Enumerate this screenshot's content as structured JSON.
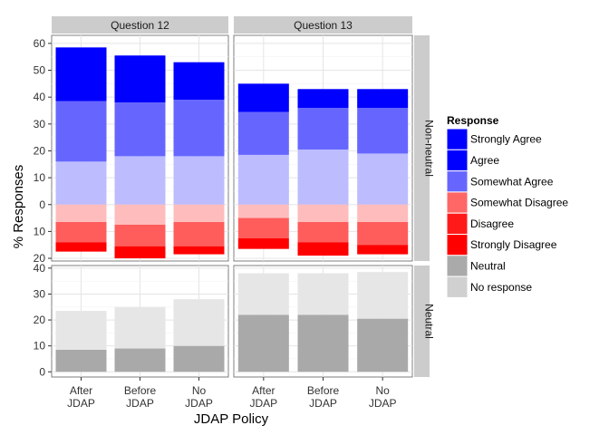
{
  "chart_data": {
    "type": "bar",
    "stacked": true,
    "facet_columns": [
      "Question 12",
      "Question 13"
    ],
    "facet_rows": [
      "Non-neutral",
      "Neutral"
    ],
    "categories": [
      "After\nJDAP",
      "Before\nJDAP",
      "No\nJDAP"
    ],
    "xlabel": "JDAP Policy",
    "ylabel": "% Responses",
    "legend": {
      "title": "Response",
      "placement": "right",
      "entries": [
        {
          "label": "Strongly Agree",
          "color": "#0000ff"
        },
        {
          "label": "Agree",
          "color": "#3333ff"
        },
        {
          "label": "Somewhat Agree",
          "color": "#6666ff"
        },
        {
          "label": "Somewhat Disagree",
          "color": "#ff6666"
        },
        {
          "label": "Disagree",
          "color": "#ff3333"
        },
        {
          "label": "Strongly Disagree",
          "color": "#ff0000"
        },
        {
          "label": "Neutral",
          "color": "#aaaaaa"
        },
        {
          "label": "No response",
          "color": "#d3d3d3"
        }
      ]
    },
    "top_row": {
      "ylim": [
        -21,
        63
      ],
      "yticks": [
        60,
        50,
        40,
        30,
        20,
        10,
        0,
        -10,
        -20
      ],
      "ytick_labels": [
        "60",
        "50",
        "40",
        "30",
        "20",
        "10",
        "0",
        "10",
        "20"
      ],
      "positive_series_order": [
        "Somewhat Agree",
        "Agree",
        "Strongly Agree"
      ],
      "negative_series_order": [
        "Somewhat Disagree",
        "Disagree",
        "Strongly Disagree"
      ],
      "panels": {
        "Question 12": {
          "Somewhat Agree": [
            16,
            18,
            18
          ],
          "Agree": [
            22.5,
            20,
            21
          ],
          "Strongly Agree": [
            20,
            17.5,
            14
          ],
          "Somewhat Disagree": [
            6.5,
            7.5,
            6.5
          ],
          "Disagree": [
            7.5,
            8,
            9
          ],
          "Strongly Disagree": [
            3.5,
            4.5,
            3
          ]
        },
        "Question 13": {
          "Somewhat Agree": [
            18.5,
            20.5,
            19
          ],
          "Agree": [
            16,
            15.5,
            17
          ],
          "Strongly Agree": [
            10.5,
            7,
            7
          ],
          "Somewhat Disagree": [
            5,
            6.5,
            6.5
          ],
          "Disagree": [
            7.5,
            7.5,
            8.5
          ],
          "Strongly Disagree": [
            4,
            5,
            3.5
          ]
        }
      }
    },
    "bottom_row": {
      "ylim": [
        -2,
        41
      ],
      "yticks": [
        0,
        10,
        20,
        30,
        40
      ],
      "ytick_labels": [
        "0",
        "10",
        "20",
        "30",
        "40"
      ],
      "series_order": [
        "Neutral",
        "No response"
      ],
      "panels": {
        "Question 12": {
          "Neutral": [
            8.5,
            9,
            10
          ],
          "No response": [
            15,
            16,
            18
          ]
        },
        "Question 13": {
          "Neutral": [
            22,
            22,
            20.5
          ],
          "No response": [
            16,
            16,
            18
          ]
        }
      }
    }
  }
}
